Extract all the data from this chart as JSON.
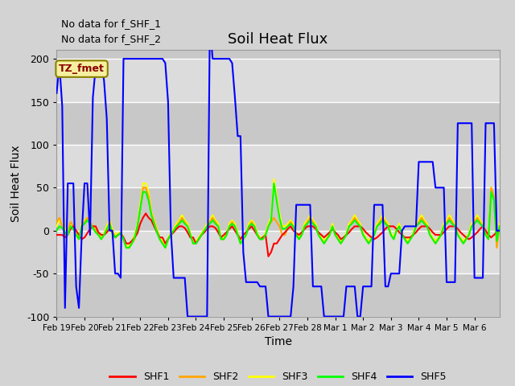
{
  "title": "Soil Heat Flux",
  "xlabel": "Time",
  "ylabel": "Soil Heat Flux",
  "ylim": [
    -100,
    210
  ],
  "yticks": [
    -100,
    -50,
    0,
    50,
    100,
    150,
    200
  ],
  "annotation_text1": "No data for f_SHF_1",
  "annotation_text2": "No data for f_SHF_2",
  "tz_label": "TZ_fmet",
  "xtick_labels": [
    "Feb 19",
    "Feb 20",
    "Feb 21",
    "Feb 22",
    "Feb 23",
    "Feb 24",
    "Feb 25",
    "Feb 26",
    "Feb 27",
    "Feb 28",
    "Mar 1",
    "Mar 2",
    "Mar 3",
    "Mar 4",
    "Mar 5",
    "Mar 6"
  ],
  "shf5_x": [
    0,
    1,
    2,
    3,
    4,
    5,
    6,
    7,
    8,
    9,
    10,
    11,
    12,
    13,
    14,
    15,
    16,
    17,
    18,
    19,
    20,
    21,
    22,
    23,
    24,
    25,
    26,
    27,
    28,
    29,
    30,
    31,
    32,
    33,
    34,
    35,
    36,
    37,
    38,
    39,
    40,
    41,
    42,
    43,
    44,
    45,
    46,
    47,
    48,
    49,
    50,
    51,
    52,
    53,
    54,
    55,
    56,
    57,
    58,
    59,
    60,
    61,
    62,
    63,
    64,
    65,
    66,
    67,
    68,
    69,
    70,
    71,
    72,
    73,
    74,
    75,
    76,
    77,
    78,
    79,
    80,
    81,
    82,
    83,
    84,
    85,
    86,
    87,
    88,
    89,
    90,
    91,
    92,
    93,
    94,
    95,
    96,
    97,
    98,
    99,
    100,
    101,
    102,
    103,
    104,
    105,
    106,
    107,
    108,
    109,
    110,
    111,
    112,
    113,
    114,
    115,
    116,
    117,
    118,
    119,
    120,
    121,
    122,
    123,
    124,
    125,
    126,
    127,
    128,
    129,
    130,
    131,
    132,
    133,
    134,
    135,
    136,
    137,
    138,
    139,
    140,
    141,
    142,
    143,
    144,
    145,
    146,
    147,
    148,
    149,
    150,
    151,
    152,
    153,
    154,
    155,
    156,
    157,
    158,
    159
  ],
  "shf5_y": [
    160,
    193,
    145,
    -90,
    55,
    55,
    55,
    -65,
    -90,
    -5,
    55,
    55,
    -5,
    155,
    190,
    195,
    195,
    175,
    130,
    0,
    0,
    -50,
    -50,
    -55,
    200,
    200,
    200,
    200,
    200,
    200,
    200,
    200,
    200,
    200,
    200,
    200,
    200,
    200,
    200,
    195,
    150,
    0,
    -55,
    -55,
    -55,
    -55,
    -55,
    -100,
    -100,
    -100,
    -100,
    -100,
    -100,
    -100,
    -100,
    240,
    200,
    200,
    200,
    200,
    200,
    200,
    200,
    195,
    155,
    110,
    110,
    -25,
    -60,
    -60,
    -60,
    -60,
    -60,
    -65,
    -65,
    -65,
    -100,
    -100,
    -100,
    -100,
    -100,
    -100,
    -100,
    -100,
    -100,
    -65,
    30,
    30,
    30,
    30,
    30,
    30,
    -65,
    -65,
    -65,
    -65,
    -100,
    -100,
    -100,
    -100,
    -100,
    -100,
    -100,
    -100,
    -65,
    -65,
    -65,
    -65,
    -100,
    -100,
    -65,
    -65,
    -65,
    -65,
    30,
    30,
    30,
    30,
    -65,
    -65,
    -50,
    -50,
    -50,
    -50,
    0,
    5,
    5,
    5,
    5,
    5,
    80,
    80,
    80,
    80,
    80,
    80,
    50,
    50,
    50,
    50,
    -60,
    -60,
    -60,
    -60,
    125,
    125,
    125,
    125,
    125,
    125,
    -55,
    -55,
    -55,
    -55,
    125,
    125,
    125,
    125,
    0,
    0
  ],
  "shf1_x": [
    0,
    1,
    2,
    3,
    4,
    5,
    6,
    7,
    8,
    9,
    10,
    11,
    12,
    13,
    14,
    15,
    16,
    17,
    18,
    19,
    20,
    21,
    22,
    23,
    24,
    25,
    26,
    27,
    28,
    29,
    30,
    31,
    32,
    33,
    34,
    35,
    36,
    37,
    38,
    39,
    40,
    41,
    42,
    43,
    44,
    45,
    46,
    47,
    48,
    49,
    50,
    51,
    52,
    53,
    54,
    55,
    56,
    57,
    58,
    59,
    60,
    61,
    62,
    63,
    64,
    65,
    66,
    67,
    68,
    69,
    70,
    71,
    72,
    73,
    74,
    75,
    76,
    77,
    78,
    79,
    80,
    81,
    82,
    83,
    84,
    85,
    86,
    87,
    88,
    89,
    90,
    91,
    92,
    93,
    94,
    95,
    96,
    97,
    98,
    99,
    100,
    101,
    102,
    103,
    104,
    105,
    106,
    107,
    108,
    109,
    110,
    111,
    112,
    113,
    114,
    115,
    116,
    117,
    118,
    119,
    120,
    121,
    122,
    123,
    124,
    125,
    126,
    127,
    128,
    129,
    130,
    131,
    132,
    133,
    134,
    135,
    136,
    137,
    138,
    139,
    140,
    141,
    142,
    143,
    144,
    145,
    146,
    147,
    148,
    149,
    150,
    151,
    152,
    153,
    154,
    155,
    156,
    157,
    158,
    159
  ],
  "shf1_y": [
    -5,
    -5,
    -5,
    -8,
    -5,
    2,
    5,
    0,
    -5,
    -10,
    -8,
    -3,
    2,
    5,
    5,
    -2,
    -5,
    -5,
    -2,
    2,
    -2,
    -8,
    -5,
    -3,
    -8,
    -15,
    -15,
    -12,
    -8,
    -3,
    8,
    15,
    20,
    15,
    12,
    5,
    -2,
    -8,
    -8,
    -15,
    -10,
    -5,
    -2,
    2,
    5,
    5,
    3,
    -2,
    -8,
    -8,
    -15,
    -10,
    -5,
    -2,
    2,
    5,
    5,
    3,
    -2,
    -8,
    -5,
    -2,
    2,
    5,
    0,
    -5,
    -10,
    -5,
    -2,
    2,
    5,
    0,
    -5,
    -10,
    -8,
    -5,
    -30,
    -25,
    -15,
    -15,
    -10,
    -5,
    -2,
    2,
    5,
    0,
    -3,
    -5,
    -2,
    2,
    5,
    5,
    5,
    2,
    -2,
    -5,
    -8,
    -5,
    -2,
    2,
    -2,
    -5,
    -10,
    -8,
    -5,
    -2,
    2,
    5,
    5,
    5,
    2,
    -2,
    -5,
    -8,
    -10,
    -8,
    -5,
    -2,
    2,
    5,
    5,
    5,
    2,
    -2,
    -5,
    -8,
    -8,
    -8,
    -5,
    -2,
    2,
    5,
    5,
    5,
    2,
    -2,
    -5,
    -5,
    -5,
    -2,
    2,
    5,
    5,
    5,
    2,
    -2,
    -5,
    -8,
    -10,
    -8,
    -5,
    -2,
    2,
    5,
    0,
    -5,
    -8,
    -5,
    -2,
    2
  ],
  "shf2_x": [
    0,
    1,
    2,
    3,
    4,
    5,
    6,
    7,
    8,
    9,
    10,
    11,
    12,
    13,
    14,
    15,
    16,
    17,
    18,
    19,
    20,
    21,
    22,
    23,
    24,
    25,
    26,
    27,
    28,
    29,
    30,
    31,
    32,
    33,
    34,
    35,
    36,
    37,
    38,
    39,
    40,
    41,
    42,
    43,
    44,
    45,
    46,
    47,
    48,
    49,
    50,
    51,
    52,
    53,
    54,
    55,
    56,
    57,
    58,
    59,
    60,
    61,
    62,
    63,
    64,
    65,
    66,
    67,
    68,
    69,
    70,
    71,
    72,
    73,
    74,
    75,
    76,
    77,
    78,
    79,
    80,
    81,
    82,
    83,
    84,
    85,
    86,
    87,
    88,
    89,
    90,
    91,
    92,
    93,
    94,
    95,
    96,
    97,
    98,
    99,
    100,
    101,
    102,
    103,
    104,
    105,
    106,
    107,
    108,
    109,
    110,
    111,
    112,
    113,
    114,
    115,
    116,
    117,
    118,
    119,
    120,
    121,
    122,
    123,
    124,
    125,
    126,
    127,
    128,
    129,
    130,
    131,
    132,
    133,
    134,
    135,
    136,
    137,
    138,
    139,
    140,
    141,
    142,
    143,
    144,
    145,
    146,
    147,
    148,
    149,
    150,
    151,
    152,
    153,
    154,
    155,
    156,
    157,
    158,
    159
  ],
  "shf2_y": [
    10,
    15,
    5,
    -5,
    0,
    10,
    5,
    -5,
    -10,
    5,
    10,
    15,
    10,
    5,
    0,
    -5,
    -10,
    -5,
    0,
    10,
    -2,
    -8,
    -5,
    -3,
    -10,
    -20,
    -20,
    -15,
    -10,
    5,
    25,
    50,
    50,
    40,
    20,
    10,
    0,
    -10,
    -15,
    -20,
    -10,
    -5,
    0,
    5,
    10,
    15,
    10,
    5,
    -5,
    -15,
    -15,
    -10,
    -5,
    0,
    5,
    10,
    15,
    10,
    5,
    -10,
    -10,
    -5,
    5,
    10,
    5,
    -5,
    -15,
    -10,
    -5,
    5,
    10,
    5,
    -5,
    -10,
    -10,
    -5,
    5,
    10,
    15,
    10,
    5,
    -5,
    -5,
    5,
    10,
    5,
    -5,
    -10,
    -5,
    5,
    10,
    15,
    10,
    5,
    -5,
    -10,
    -15,
    -10,
    -5,
    5,
    -5,
    -10,
    -15,
    -10,
    -5,
    5,
    10,
    15,
    10,
    5,
    -5,
    -10,
    -15,
    -10,
    -5,
    5,
    10,
    15,
    10,
    5,
    -5,
    -10,
    0,
    5,
    -5,
    -10,
    -15,
    -10,
    -5,
    5,
    10,
    15,
    10,
    5,
    -5,
    -10,
    -15,
    -10,
    -5,
    5,
    10,
    15,
    10,
    5,
    -5,
    -10,
    -15,
    -10,
    -5,
    5,
    10,
    15,
    10,
    5,
    -5,
    -10,
    50,
    40,
    -20,
    5
  ],
  "shf3_x": [
    0,
    1,
    2,
    3,
    4,
    5,
    6,
    7,
    8,
    9,
    10,
    11,
    12,
    13,
    14,
    15,
    16,
    17,
    18,
    19,
    20,
    21,
    22,
    23,
    24,
    25,
    26,
    27,
    28,
    29,
    30,
    31,
    32,
    33,
    34,
    35,
    36,
    37,
    38,
    39,
    40,
    41,
    42,
    43,
    44,
    45,
    46,
    47,
    48,
    49,
    50,
    51,
    52,
    53,
    54,
    55,
    56,
    57,
    58,
    59,
    60,
    61,
    62,
    63,
    64,
    65,
    66,
    67,
    68,
    69,
    70,
    71,
    72,
    73,
    74,
    75,
    76,
    77,
    78,
    79,
    80,
    81,
    82,
    83,
    84,
    85,
    86,
    87,
    88,
    89,
    90,
    91,
    92,
    93,
    94,
    95,
    96,
    97,
    98,
    99,
    100,
    101,
    102,
    103,
    104,
    105,
    106,
    107,
    108,
    109,
    110,
    111,
    112,
    113,
    114,
    115,
    116,
    117,
    118,
    119,
    120,
    121,
    122,
    123,
    124,
    125,
    126,
    127,
    128,
    129,
    130,
    131,
    132,
    133,
    134,
    135,
    136,
    137,
    138,
    139,
    140,
    141,
    142,
    143,
    144,
    145,
    146,
    147,
    148,
    149,
    150,
    151,
    152,
    153,
    154,
    155,
    156,
    157,
    158,
    159
  ],
  "shf3_y": [
    5,
    12,
    8,
    2,
    0,
    8,
    5,
    -3,
    -8,
    8,
    12,
    15,
    10,
    5,
    2,
    -2,
    -8,
    -3,
    5,
    12,
    2,
    -5,
    -3,
    -2,
    -8,
    -18,
    -18,
    -12,
    -5,
    8,
    30,
    55,
    55,
    45,
    22,
    12,
    2,
    -8,
    -12,
    -18,
    -8,
    -3,
    2,
    8,
    12,
    18,
    12,
    8,
    -3,
    -12,
    -12,
    -8,
    -3,
    2,
    8,
    12,
    18,
    12,
    8,
    -8,
    -8,
    -3,
    8,
    12,
    8,
    -3,
    -12,
    -8,
    -3,
    8,
    12,
    8,
    -3,
    -8,
    -8,
    -3,
    8,
    15,
    60,
    40,
    20,
    5,
    5,
    8,
    12,
    8,
    -3,
    -8,
    -3,
    8,
    12,
    18,
    12,
    8,
    -3,
    -8,
    -12,
    -8,
    -3,
    8,
    -3,
    -8,
    -12,
    -8,
    -3,
    8,
    12,
    18,
    12,
    8,
    -3,
    -8,
    -12,
    -8,
    -3,
    8,
    12,
    18,
    12,
    8,
    -3,
    -8,
    2,
    8,
    -3,
    -8,
    -12,
    -8,
    -3,
    8,
    12,
    18,
    12,
    8,
    -3,
    -8,
    -12,
    -8,
    -3,
    8,
    12,
    18,
    12,
    8,
    -3,
    -8,
    -12,
    -8,
    -3,
    8,
    12,
    18,
    12,
    8,
    -3,
    -8,
    50,
    40,
    -15,
    8
  ],
  "shf4_x": [
    0,
    1,
    2,
    3,
    4,
    5,
    6,
    7,
    8,
    9,
    10,
    11,
    12,
    13,
    14,
    15,
    16,
    17,
    18,
    19,
    20,
    21,
    22,
    23,
    24,
    25,
    26,
    27,
    28,
    29,
    30,
    31,
    32,
    33,
    34,
    35,
    36,
    37,
    38,
    39,
    40,
    41,
    42,
    43,
    44,
    45,
    46,
    47,
    48,
    49,
    50,
    51,
    52,
    53,
    54,
    55,
    56,
    57,
    58,
    59,
    60,
    61,
    62,
    63,
    64,
    65,
    66,
    67,
    68,
    69,
    70,
    71,
    72,
    73,
    74,
    75,
    76,
    77,
    78,
    79,
    80,
    81,
    82,
    83,
    84,
    85,
    86,
    87,
    88,
    89,
    90,
    91,
    92,
    93,
    94,
    95,
    96,
    97,
    98,
    99,
    100,
    101,
    102,
    103,
    104,
    105,
    106,
    107,
    108,
    109,
    110,
    111,
    112,
    113,
    114,
    115,
    116,
    117,
    118,
    119,
    120,
    121,
    122,
    123,
    124,
    125,
    126,
    127,
    128,
    129,
    130,
    131,
    132,
    133,
    134,
    135,
    136,
    137,
    138,
    139,
    140,
    141,
    142,
    143,
    144,
    145,
    146,
    147,
    148,
    149,
    150,
    151,
    152,
    153,
    154,
    155,
    156,
    157,
    158,
    159
  ],
  "shf4_y": [
    0,
    5,
    3,
    -2,
    -5,
    5,
    2,
    -5,
    -10,
    5,
    8,
    12,
    8,
    3,
    -2,
    -5,
    -10,
    -5,
    2,
    8,
    -3,
    -8,
    -5,
    -3,
    -10,
    -20,
    -20,
    -15,
    -8,
    5,
    25,
    45,
    45,
    35,
    18,
    8,
    -2,
    -10,
    -15,
    -20,
    -10,
    -5,
    0,
    5,
    8,
    12,
    8,
    5,
    -5,
    -15,
    -15,
    -10,
    -5,
    0,
    5,
    8,
    12,
    8,
    5,
    -10,
    -10,
    -5,
    5,
    8,
    5,
    -5,
    -15,
    -10,
    -5,
    5,
    8,
    5,
    -5,
    -10,
    -10,
    -5,
    5,
    12,
    55,
    35,
    15,
    2,
    2,
    5,
    8,
    5,
    -5,
    -10,
    -5,
    5,
    8,
    12,
    8,
    5,
    -5,
    -10,
    -15,
    -10,
    -5,
    5,
    -5,
    -10,
    -15,
    -10,
    -5,
    5,
    8,
    12,
    8,
    5,
    -5,
    -10,
    -15,
    -10,
    -5,
    5,
    8,
    12,
    8,
    5,
    -5,
    -10,
    0,
    5,
    -5,
    -10,
    -15,
    -10,
    -5,
    5,
    8,
    12,
    8,
    5,
    -5,
    -10,
    -15,
    -10,
    -5,
    5,
    8,
    12,
    8,
    5,
    -5,
    -10,
    -15,
    -10,
    -5,
    5,
    8,
    12,
    8,
    5,
    -5,
    -10,
    45,
    35,
    -12,
    5
  ],
  "bg_outer": "#d3d3d3",
  "band_colors": [
    "#c8c8c8",
    "#dcdcdc",
    "#c8c8c8",
    "#dcdcdc",
    "#c8c8c8",
    "#dcdcdc",
    "#c8c8c8"
  ],
  "band_edges": [
    -100,
    -50,
    0,
    50,
    100,
    150,
    200,
    210
  ]
}
